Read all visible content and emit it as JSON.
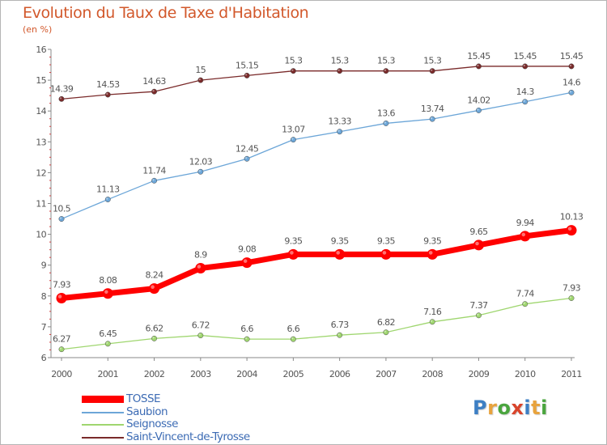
{
  "title": "Evolution du Taux de Taxe d'Habitation",
  "subtitle": "(en %)",
  "chart_data": {
    "type": "line",
    "title": "Evolution du Taux de Taxe d'Habitation",
    "ylabel": "(en %)",
    "xlabel": "",
    "ylim": [
      6,
      16
    ],
    "yticks": [
      "6",
      "7",
      "8",
      "9",
      "10",
      "11",
      "12",
      "13",
      "14",
      "15",
      "16"
    ],
    "x": [
      "2000",
      "2001",
      "2002",
      "2003",
      "2004",
      "2005",
      "2006",
      "2007",
      "2008",
      "2009",
      "2010",
      "2011"
    ],
    "grid": false,
    "legend_position": "bottom-left",
    "series": [
      {
        "name": "TOSSE",
        "color": "#ff0000",
        "values": [
          7.93,
          8.08,
          8.24,
          8.9,
          9.08,
          9.35,
          9.35,
          9.35,
          9.35,
          9.65,
          9.94,
          10.13
        ],
        "labels": [
          "7.93",
          "8.08",
          "8.24",
          "8.9",
          "9.08",
          "9.35",
          "9.35",
          "9.35",
          "9.35",
          "9.65",
          "9.94",
          "10.13"
        ]
      },
      {
        "name": "Saubion",
        "color": "#6ca6d8",
        "values": [
          10.5,
          11.13,
          11.74,
          12.03,
          12.45,
          13.07,
          13.33,
          13.6,
          13.74,
          14.02,
          14.3,
          14.6
        ],
        "labels": [
          "10.5",
          "11.13",
          "11.74",
          "12.03",
          "12.45",
          "13.07",
          "13.33",
          "13.6",
          "13.74",
          "14.02",
          "14.3",
          "14.6"
        ]
      },
      {
        "name": "Seignosse",
        "color": "#9fd66f",
        "values": [
          6.27,
          6.45,
          6.62,
          6.72,
          6.6,
          6.6,
          6.73,
          6.82,
          7.16,
          7.37,
          7.74,
          7.93
        ],
        "labels": [
          "6.27",
          "6.45",
          "6.62",
          "6.72",
          "6.6",
          "6.6",
          "6.73",
          "6.82",
          "7.16",
          "7.37",
          "7.74",
          "7.93"
        ]
      },
      {
        "name": "Saint-Vincent-de-Tyrosse",
        "color": "#7a2a2a",
        "values": [
          14.39,
          14.53,
          14.63,
          15,
          15.15,
          15.3,
          15.3,
          15.3,
          15.3,
          15.45,
          15.45,
          15.45
        ],
        "labels": [
          "14.39",
          "14.53",
          "14.63",
          "15",
          "15.15",
          "15.3",
          "15.3",
          "15.3",
          "15.3",
          "15.45",
          "15.45",
          "15.45"
        ]
      }
    ]
  },
  "legend": [
    {
      "label": "TOSSE",
      "color": "#ff0000"
    },
    {
      "label": "Saubion",
      "color": "#6ca6d8"
    },
    {
      "label": "Seignosse",
      "color": "#9fd66f"
    },
    {
      "label": "Saint-Vincent-de-Tyrosse",
      "color": "#7a2a2a"
    }
  ],
  "logo": {
    "text": "Proxiti",
    "letters": [
      "P",
      "r",
      "o",
      "x",
      "i",
      "t",
      "i"
    ],
    "colors": [
      "#3d7fc4",
      "#e8a33d",
      "#4aa53e",
      "#d9442b",
      "#3d7fc4",
      "#e8a33d",
      "#4aa53e"
    ]
  }
}
